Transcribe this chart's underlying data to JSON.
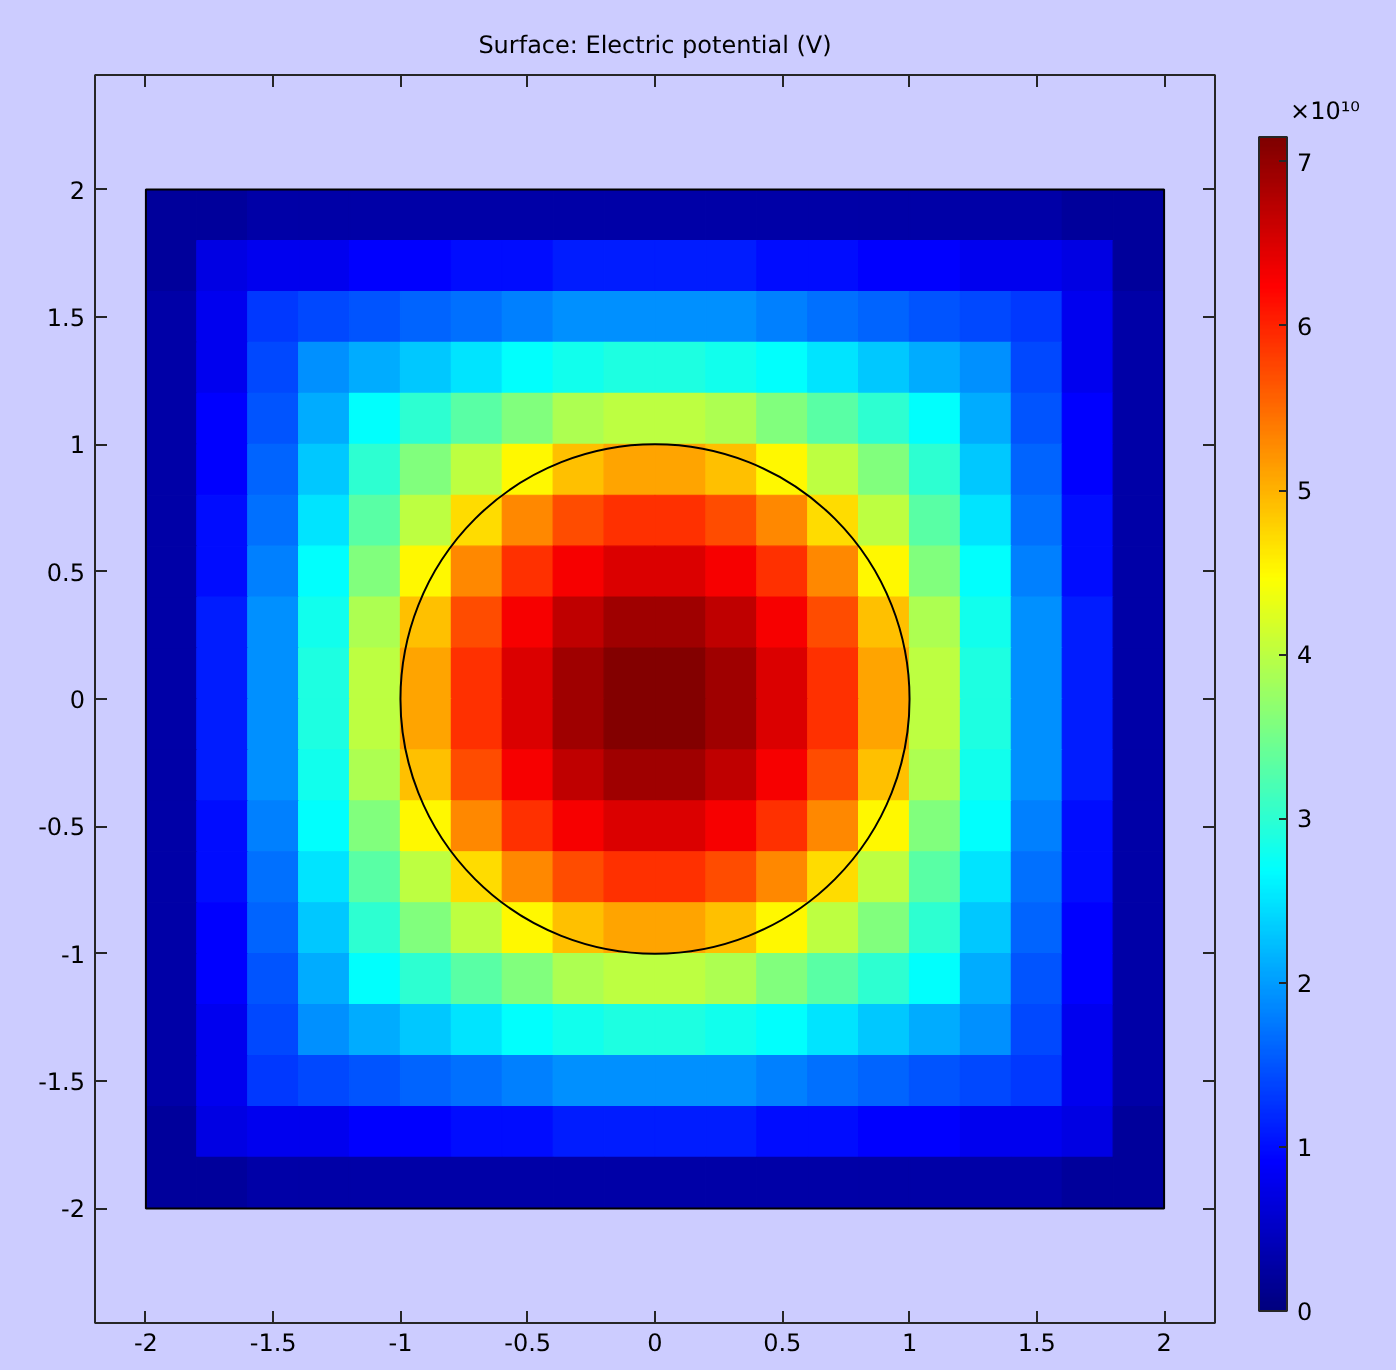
{
  "chart_data": {
    "type": "heatmap",
    "title": "Surface: Electric potential (V)",
    "clabel": "×10¹⁰",
    "x": [
      -1.9,
      -1.7,
      -1.5,
      -1.3,
      -1.1,
      -0.9,
      -0.7,
      -0.5,
      -0.3,
      -0.1,
      0.1,
      0.3,
      0.5,
      0.7,
      0.9,
      1.1,
      1.3,
      1.5,
      1.7,
      1.9
    ],
    "y": [
      1.9,
      1.7,
      1.5,
      1.3,
      1.1,
      0.9,
      0.7,
      0.5,
      0.3,
      0.1,
      -0.1,
      -0.3,
      -0.5,
      -0.7,
      -0.9,
      -1.1,
      -1.3,
      -1.5,
      -1.7,
      -1.9
    ],
    "cells": [
      [
        0.2,
        0.2,
        0.3,
        0.3,
        0.3,
        0.3,
        0.3,
        0.3,
        0.3,
        0.3,
        0.3,
        0.3,
        0.3,
        0.3,
        0.3,
        0.3,
        0.3,
        0.3,
        0.2,
        0.2
      ],
      [
        0.2,
        0.7,
        0.8,
        0.8,
        0.9,
        0.9,
        1.0,
        1.0,
        1.1,
        1.1,
        1.1,
        1.1,
        1.0,
        1.0,
        0.9,
        0.9,
        0.8,
        0.8,
        0.7,
        0.2
      ],
      [
        0.3,
        0.8,
        1.3,
        1.4,
        1.5,
        1.6,
        1.7,
        1.8,
        1.9,
        1.9,
        1.9,
        1.9,
        1.8,
        1.7,
        1.6,
        1.5,
        1.4,
        1.3,
        0.8,
        0.3
      ],
      [
        0.3,
        0.8,
        1.4,
        1.9,
        2.1,
        2.3,
        2.5,
        2.7,
        2.8,
        2.9,
        2.9,
        2.8,
        2.7,
        2.5,
        2.3,
        2.1,
        1.9,
        1.4,
        0.8,
        0.3
      ],
      [
        0.3,
        0.9,
        1.5,
        2.1,
        2.7,
        3.0,
        3.3,
        3.6,
        3.9,
        4.0,
        4.0,
        3.9,
        3.6,
        3.3,
        3.0,
        2.7,
        2.1,
        1.5,
        0.9,
        0.3
      ],
      [
        0.3,
        0.9,
        1.6,
        2.3,
        3.0,
        3.6,
        4.0,
        4.5,
        4.9,
        5.1,
        5.1,
        4.9,
        4.5,
        4.0,
        3.6,
        3.0,
        2.3,
        1.6,
        0.9,
        0.3
      ],
      [
        0.3,
        1.0,
        1.7,
        2.5,
        3.3,
        4.0,
        4.7,
        5.3,
        5.7,
        5.9,
        5.9,
        5.7,
        5.3,
        4.7,
        4.0,
        3.3,
        2.5,
        1.7,
        1.0,
        0.3
      ],
      [
        0.3,
        1.0,
        1.8,
        2.7,
        3.6,
        4.5,
        5.3,
        5.9,
        6.3,
        6.5,
        6.5,
        6.3,
        5.9,
        5.3,
        4.5,
        3.6,
        2.7,
        1.8,
        1.0,
        0.3
      ],
      [
        0.3,
        1.1,
        1.9,
        2.8,
        3.9,
        4.9,
        5.7,
        6.3,
        6.7,
        6.9,
        6.9,
        6.7,
        6.3,
        5.7,
        4.9,
        3.9,
        2.8,
        1.9,
        1.1,
        0.3
      ],
      [
        0.3,
        1.1,
        1.9,
        2.9,
        4.0,
        5.1,
        5.9,
        6.5,
        6.9,
        7.1,
        7.1,
        6.9,
        6.5,
        5.9,
        5.1,
        4.0,
        2.9,
        1.9,
        1.1,
        0.3
      ],
      [
        0.3,
        1.1,
        1.9,
        2.9,
        4.0,
        5.1,
        5.9,
        6.5,
        6.9,
        7.1,
        7.1,
        6.9,
        6.5,
        5.9,
        5.1,
        4.0,
        2.9,
        1.9,
        1.1,
        0.3
      ],
      [
        0.3,
        1.1,
        1.9,
        2.8,
        3.9,
        4.9,
        5.7,
        6.3,
        6.7,
        6.9,
        6.9,
        6.7,
        6.3,
        5.7,
        4.9,
        3.9,
        2.8,
        1.9,
        1.1,
        0.3
      ],
      [
        0.3,
        1.0,
        1.8,
        2.7,
        3.6,
        4.5,
        5.3,
        5.9,
        6.3,
        6.5,
        6.5,
        6.3,
        5.9,
        5.3,
        4.5,
        3.6,
        2.7,
        1.8,
        1.0,
        0.3
      ],
      [
        0.3,
        1.0,
        1.7,
        2.5,
        3.3,
        4.0,
        4.7,
        5.3,
        5.7,
        5.9,
        5.9,
        5.7,
        5.3,
        4.7,
        4.0,
        3.3,
        2.5,
        1.7,
        1.0,
        0.3
      ],
      [
        0.3,
        0.9,
        1.6,
        2.3,
        3.0,
        3.6,
        4.0,
        4.5,
        4.9,
        5.1,
        5.1,
        4.9,
        4.5,
        4.0,
        3.6,
        3.0,
        2.3,
        1.6,
        0.9,
        0.3
      ],
      [
        0.3,
        0.9,
        1.5,
        2.1,
        2.7,
        3.0,
        3.3,
        3.6,
        3.9,
        4.0,
        4.0,
        3.9,
        3.6,
        3.3,
        3.0,
        2.7,
        2.1,
        1.5,
        0.9,
        0.3
      ],
      [
        0.3,
        0.8,
        1.4,
        1.9,
        2.1,
        2.3,
        2.5,
        2.7,
        2.8,
        2.9,
        2.9,
        2.8,
        2.7,
        2.5,
        2.3,
        2.1,
        1.9,
        1.4,
        0.8,
        0.3
      ],
      [
        0.3,
        0.8,
        1.3,
        1.4,
        1.5,
        1.6,
        1.7,
        1.8,
        1.9,
        1.9,
        1.9,
        1.9,
        1.8,
        1.7,
        1.6,
        1.5,
        1.4,
        1.3,
        0.8,
        0.3
      ],
      [
        0.2,
        0.7,
        0.8,
        0.8,
        0.9,
        0.9,
        1.0,
        1.0,
        1.1,
        1.1,
        1.1,
        1.1,
        1.0,
        1.0,
        0.9,
        0.9,
        0.8,
        0.8,
        0.7,
        0.2
      ],
      [
        0.2,
        0.2,
        0.3,
        0.3,
        0.3,
        0.3,
        0.3,
        0.3,
        0.3,
        0.3,
        0.3,
        0.3,
        0.3,
        0.3,
        0.3,
        0.3,
        0.3,
        0.3,
        0.2,
        0.2
      ]
    ],
    "clim": [
      0,
      7.15
    ],
    "cticks": [
      0,
      1,
      2,
      3,
      4,
      5,
      6,
      7
    ],
    "xlim": [
      -2.2,
      2.2
    ],
    "ylim": [
      -2.45,
      2.45
    ],
    "xticks": [
      -2,
      -1.5,
      -1,
      -0.5,
      0,
      0.5,
      1,
      1.5,
      2
    ],
    "yticks": [
      -2,
      -1.5,
      -1,
      -0.5,
      0,
      0.5,
      1,
      1.5,
      2
    ]
  }
}
